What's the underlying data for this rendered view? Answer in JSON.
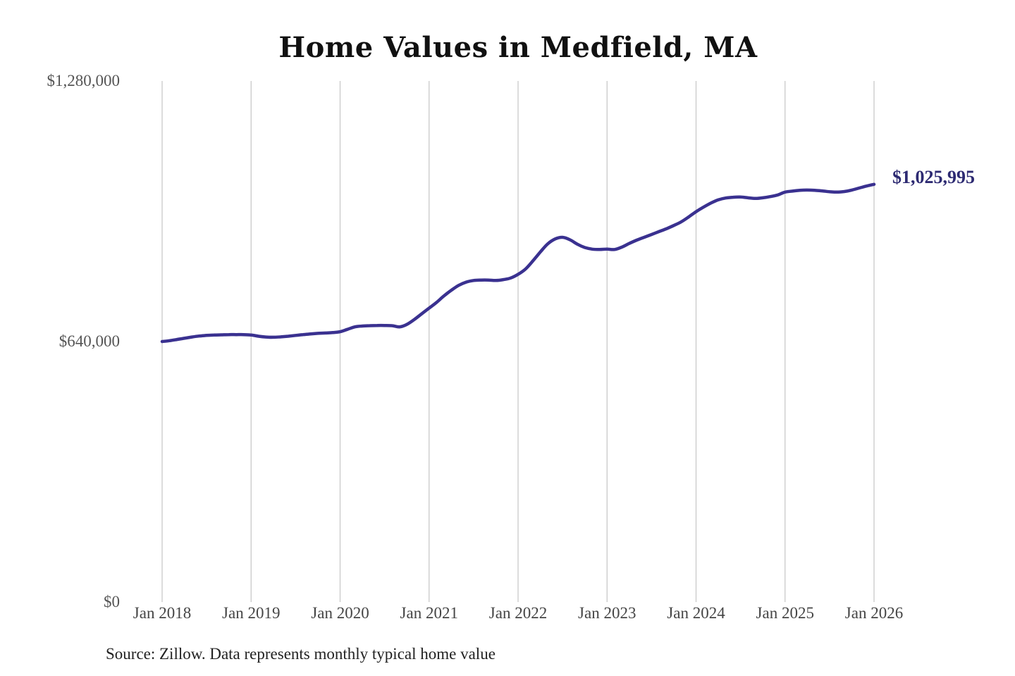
{
  "title": "Home Values in Medfield, MA",
  "end_value_label": "$1,025,995",
  "source_note": "Source: Zillow. Data represents monthly typical home value",
  "colors": {
    "line": "#3a3190",
    "end_label": "#2d2a72",
    "grid": "#c9c9c9",
    "title": "#111111",
    "y_tick_text": "#555555",
    "x_tick_text": "#454545",
    "source_text": "#222222",
    "background": "#ffffff"
  },
  "chart_data": {
    "type": "line",
    "title": "Home Values in Medfield, MA",
    "xlabel": "",
    "ylabel": "",
    "ylim": [
      0,
      1280000
    ],
    "grid": "vertical-only",
    "legend": "none",
    "frequency": "monthly",
    "start_month": "Jan 2018",
    "end_month": "Jan 2026",
    "x_tick_labels": [
      "Jan 2018",
      "Jan 2019",
      "Jan 2020",
      "Jan 2021",
      "Jan 2022",
      "Jan 2023",
      "Jan 2024",
      "Jan 2025",
      "Jan 2026"
    ],
    "y_ticks": [
      {
        "value": 0,
        "label": "$0"
      },
      {
        "value": 640000,
        "label": "$640,000"
      },
      {
        "value": 1280000,
        "label": "$1,280,000"
      }
    ],
    "end_value": 1025995,
    "series": [
      {
        "name": "Typical home value",
        "values": [
          640000,
          642000,
          645000,
          648000,
          651000,
          653500,
          655000,
          656000,
          656500,
          657000,
          657000,
          657000,
          656000,
          653000,
          651000,
          650500,
          651500,
          653000,
          655000,
          657000,
          658500,
          660000,
          661000,
          662000,
          664000,
          670000,
          676000,
          678000,
          679000,
          679500,
          679500,
          679000,
          676000,
          682000,
          694000,
          708000,
          722000,
          736000,
          752000,
          766000,
          778000,
          786000,
          790000,
          791000,
          791000,
          790000,
          792000,
          796000,
          805000,
          818000,
          838000,
          860000,
          880000,
          892000,
          896000,
          890000,
          879000,
          871000,
          867000,
          866000,
          867000,
          866000,
          872000,
          881000,
          889000,
          896000,
          903000,
          910000,
          917000,
          925000,
          934000,
          946000,
          959000,
          970000,
          980000,
          988000,
          992500,
          994500,
          995000,
          993000,
          991500,
          993000,
          996000,
          1000000,
          1007000,
          1009500,
          1011500,
          1012000,
          1011500,
          1010000,
          1008000,
          1007000,
          1008500,
          1012000,
          1017000,
          1022000,
          1025995
        ]
      }
    ]
  }
}
